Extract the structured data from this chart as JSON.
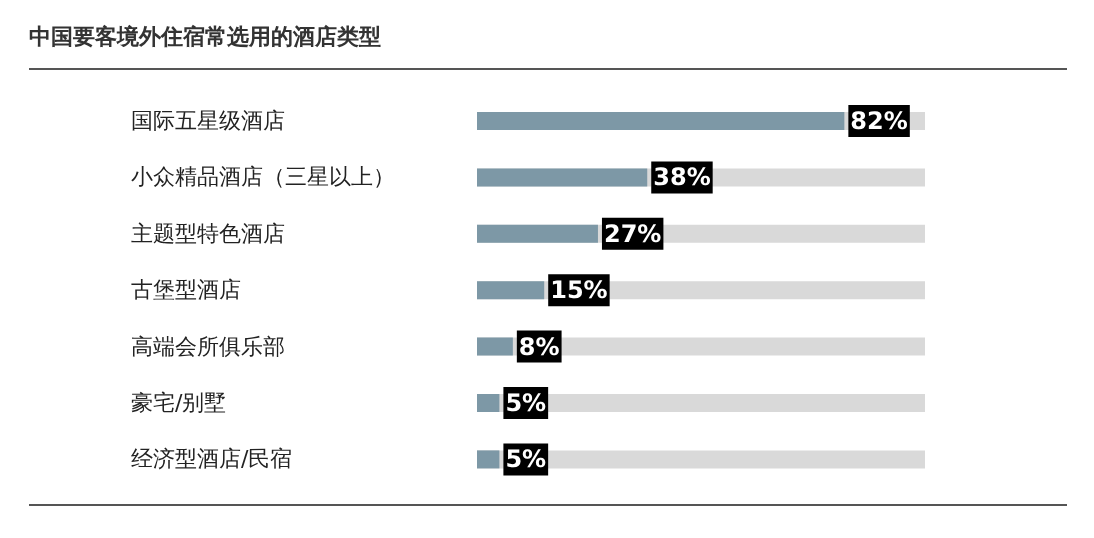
{
  "chart_data": {
    "type": "bar",
    "orientation": "horizontal",
    "title": "中国要客境外住宿常选用的酒店类型",
    "categories": [
      "国际五星级酒店",
      "小众精品酒店（三星以上）",
      "主题型特色酒店",
      "古堡型酒店",
      "高端会所俱乐部",
      "豪宅/别墅",
      "经济型酒店/民宿"
    ],
    "values": [
      82,
      38,
      27,
      15,
      8,
      5,
      5
    ],
    "value_labels": [
      "82%",
      "38%",
      "27%",
      "15%",
      "8%",
      "5%",
      "5%"
    ],
    "color": "#7d98a6",
    "xlim": [
      0,
      100
    ],
    "tick_labels": "y",
    "grid": false
  }
}
